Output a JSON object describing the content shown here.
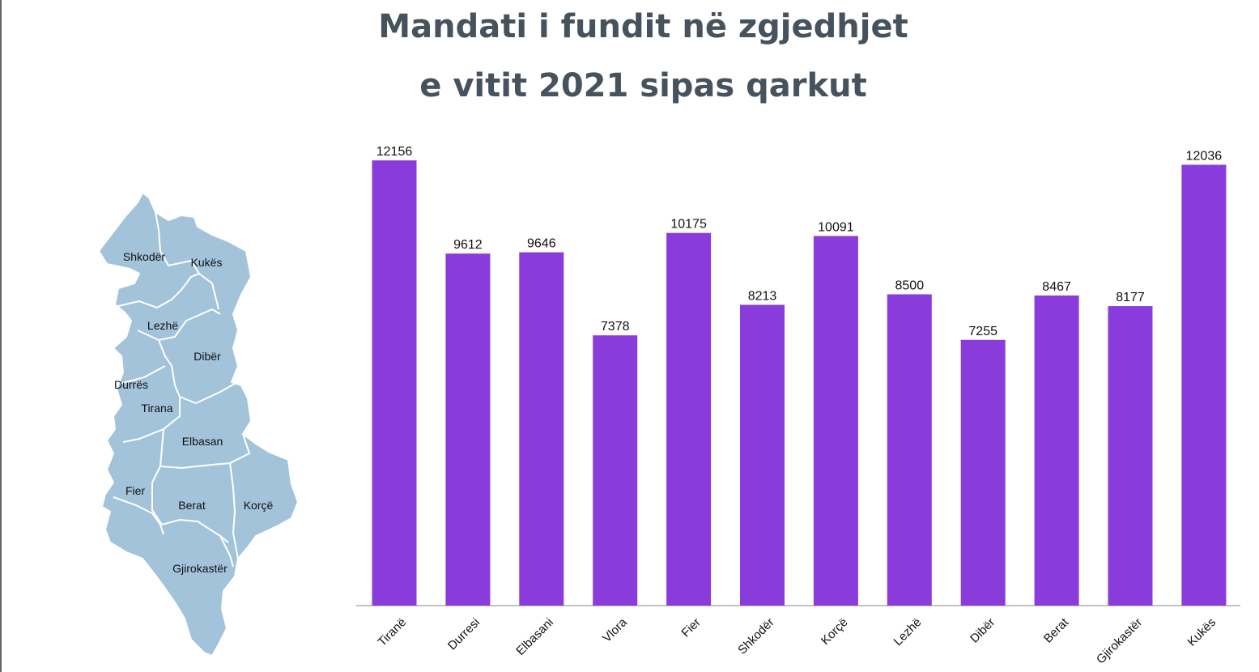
{
  "title": {
    "line1": "Mandati i fundit në zgjedhjet",
    "line2": "e vitit 2021 sipas qarkut"
  },
  "colors": {
    "bar": "#8a3bdc",
    "title": "#46525e",
    "map_fill": "#a3c3da",
    "map_border": "#ffffff",
    "axis": "#888888"
  },
  "map": {
    "regions": [
      {
        "id": "shkoder",
        "label": "Shkodër"
      },
      {
        "id": "kukes",
        "label": "Kukës"
      },
      {
        "id": "lezhe",
        "label": "Lezhë"
      },
      {
        "id": "diber",
        "label": "Dibër"
      },
      {
        "id": "durres",
        "label": "Durrës"
      },
      {
        "id": "tirana",
        "label": "Tirana"
      },
      {
        "id": "elbasan",
        "label": "Elbasan"
      },
      {
        "id": "fier",
        "label": "Fier"
      },
      {
        "id": "berat",
        "label": "Berat"
      },
      {
        "id": "korce",
        "label": "Korçë"
      },
      {
        "id": "gjirokaster",
        "label": "Gjirokastër"
      }
    ]
  },
  "chart_data": {
    "type": "bar",
    "title": "Mandati i fundit në zgjedhjet e vitit 2021 sipas qarkut",
    "xlabel": "",
    "ylabel": "",
    "categories": [
      "Tiranë",
      "Durresi",
      "Elbasani",
      "Vlora",
      "Fier",
      "Shkodër",
      "Korçë",
      "Lezhë",
      "Dibër",
      "Berat",
      "Gjirokastër",
      "Kukës"
    ],
    "values": [
      12156,
      9612,
      9646,
      7378,
      10175,
      8213,
      10091,
      8500,
      7255,
      8467,
      8177,
      12036
    ],
    "ylim": [
      0,
      12600
    ],
    "grid": false,
    "data_labels": true,
    "legend": "none"
  }
}
